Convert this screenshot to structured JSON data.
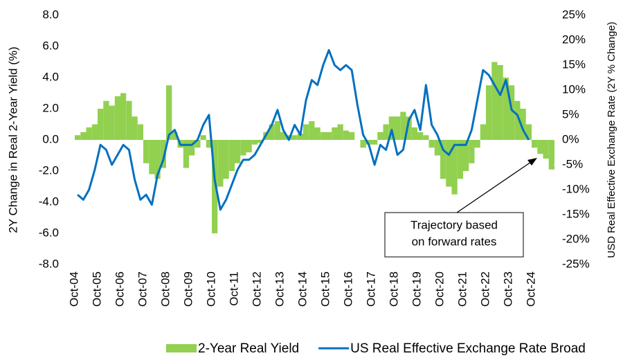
{
  "chart_data": {
    "type": "bar_line",
    "y_label": "2Y Change in Real 2-Year Yield (%)",
    "y2_label": "USD Real Effective  Exchange Rate (2Y % Change)",
    "annotation": [
      "Trajectory based",
      "on forward rates"
    ],
    "categories": [
      "Oct-04",
      null,
      null,
      null,
      "Oct-05",
      null,
      null,
      null,
      "Oct-06",
      null,
      null,
      null,
      "Oct-07",
      null,
      null,
      null,
      "Oct-08",
      null,
      null,
      null,
      "Oct-09",
      null,
      null,
      null,
      "Oct-10",
      null,
      null,
      null,
      "Oct-11",
      null,
      null,
      null,
      "Oct-12",
      null,
      null,
      null,
      "Oct-13",
      null,
      null,
      null,
      "Oct-14",
      null,
      null,
      null,
      "Oct-15",
      null,
      null,
      null,
      "Oct-16",
      null,
      null,
      null,
      "Oct-17",
      null,
      null,
      null,
      "Oct-18",
      null,
      null,
      null,
      "Oct-19",
      null,
      null,
      null,
      "Oct-20",
      null,
      null,
      null,
      "Oct-21",
      null,
      null,
      null,
      "Oct-22",
      null,
      null,
      null,
      "Oct-23",
      null,
      null,
      null,
      "Oct-24",
      null,
      null,
      null
    ],
    "series": [
      {
        "name": "2-Year Real Yield",
        "type": "bar",
        "color": "#92d050",
        "values": [
          0.3,
          0.5,
          0.8,
          1.0,
          2.0,
          2.5,
          2.2,
          2.8,
          3.0,
          2.5,
          1.5,
          1.0,
          -1.5,
          -2.2,
          -2.5,
          -1.8,
          3.5,
          0.5,
          -0.5,
          -1.8,
          -1.0,
          -0.5,
          0.3,
          -0.5,
          -6.0,
          -3.0,
          -2.5,
          -2.0,
          -1.5,
          -1.0,
          -0.8,
          -0.3,
          -0.2,
          0.5,
          1.0,
          1.2,
          0.5,
          0.3,
          0.3,
          0.4,
          1.0,
          1.2,
          0.8,
          0.5,
          0.5,
          0.8,
          1.0,
          0.6,
          0.5,
          0,
          -0.5,
          -0.3,
          -0.3,
          0.5,
          1.0,
          1.5,
          1.5,
          1.8,
          1.5,
          0.8,
          0.5,
          0.3,
          -0.5,
          -1.0,
          -2.5,
          -3.0,
          -3.5,
          -2.5,
          -2.0,
          -1.5,
          -0.5,
          1.0,
          3.5,
          5.0,
          4.8,
          4.0,
          3.5,
          2.5,
          2.0,
          1.0,
          -0.5,
          -0.9,
          -1.2,
          -1.9
        ]
      },
      {
        "name": "US Real Effective Exchange Rate Broad",
        "type": "line",
        "axis": "y2",
        "color": "#0070c0",
        "values": [
          -11,
          -12,
          -10,
          -6,
          -1,
          -2,
          -5,
          -3,
          -1,
          -2,
          -8,
          -12,
          -11,
          -13,
          -7,
          -4,
          1,
          2,
          -1,
          -1,
          -1,
          0,
          3,
          5,
          -8,
          -14,
          -12,
          -9,
          -6,
          -4,
          -4,
          -3,
          -1,
          1,
          3,
          6,
          2,
          0,
          3,
          1,
          8,
          12,
          11,
          15,
          18,
          15,
          14,
          15,
          14,
          7,
          1,
          -1,
          -5,
          -1,
          -2,
          2,
          -3,
          -2,
          4,
          6,
          2,
          11,
          3,
          1,
          -2,
          -3,
          -1,
          -1,
          -1,
          2,
          8,
          14,
          13,
          11,
          9,
          12,
          6,
          5,
          2,
          0,
          null,
          null,
          null,
          null
        ]
      }
    ],
    "ylim": [
      -8,
      8
    ],
    "yticks": [
      {
        "value": -8,
        "label": "-8.0"
      },
      {
        "value": -6,
        "label": "-6.0"
      },
      {
        "value": -4,
        "label": "-4.0"
      },
      {
        "value": -2,
        "label": "-2.0"
      },
      {
        "value": 0,
        "label": "0.0"
      },
      {
        "value": 2,
        "label": "2.0"
      },
      {
        "value": 4,
        "label": "4.0"
      },
      {
        "value": 6,
        "label": "6.0"
      },
      {
        "value": 8,
        "label": "8.0"
      }
    ],
    "y2lim": [
      -25,
      25
    ],
    "y2ticks": [
      {
        "value": -25,
        "label": "-25%"
      },
      {
        "value": -20,
        "label": "-20%"
      },
      {
        "value": -15,
        "label": "-15%"
      },
      {
        "value": -10,
        "label": "-10%"
      },
      {
        "value": -5,
        "label": "-5%"
      },
      {
        "value": 0,
        "label": "0%"
      },
      {
        "value": 5,
        "label": "5%"
      },
      {
        "value": 10,
        "label": "10%"
      },
      {
        "value": 15,
        "label": "15%"
      },
      {
        "value": 20,
        "label": "20%"
      },
      {
        "value": 25,
        "label": "25%"
      }
    ]
  }
}
